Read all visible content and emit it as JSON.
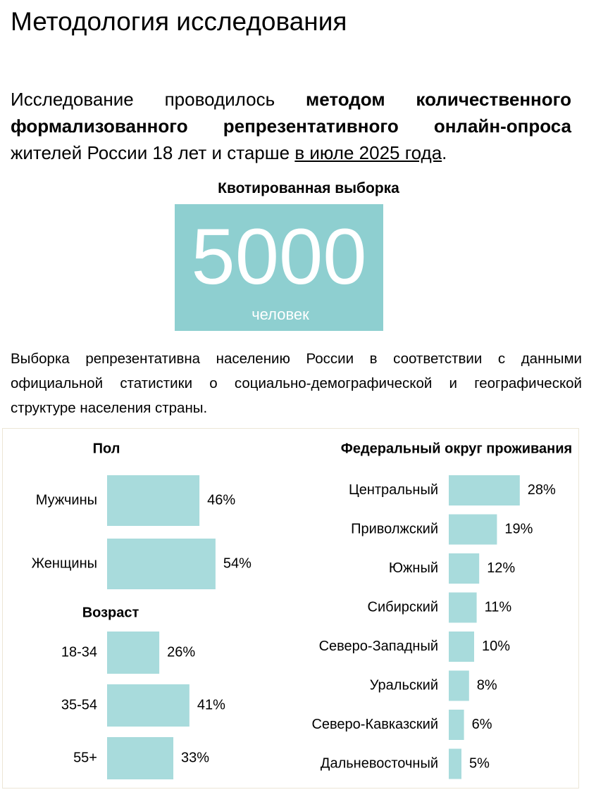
{
  "header": {
    "title": "Методология исследования"
  },
  "intro": [
    "Исследование проводилось ",
    "методом количественного формализованного репрезентативного онлайн-опроса",
    " жителей России 18 лет и старше ",
    "в июле 2025 года",
    "."
  ],
  "sample": {
    "title": "Квотированная выборка",
    "size": 5000,
    "unit": "человек"
  },
  "description": "Выборка репрезентативна населению России в соответствии с данными официальной статистики о социально-демографической и географической структуре населения страны.",
  "chart_data": [
    {
      "type": "bar",
      "orientation": "horizontal",
      "title": "Пол",
      "categories": [
        "Мужчины",
        "Женщины"
      ],
      "values": [
        46,
        54
      ],
      "value_labels": [
        "46%",
        "54%"
      ],
      "color": "#a8dbdc"
    },
    {
      "type": "bar",
      "orientation": "horizontal",
      "title": "Возраст",
      "categories": [
        "18-34",
        "35-54",
        "55+"
      ],
      "values": [
        26,
        41,
        33
      ],
      "value_labels": [
        "26%",
        "41%",
        "33%"
      ],
      "color": "#a8dbdc"
    },
    {
      "type": "bar",
      "orientation": "horizontal",
      "title": "Федеральный округ проживания",
      "categories": [
        "Центральный",
        "Приволжский",
        "Южный",
        "Сибирский",
        "Северо-Западный",
        "Уральский",
        "Северо-Кавказский",
        "Дальневосточный"
      ],
      "values": [
        28,
        19,
        12,
        11,
        10,
        8,
        6,
        5
      ],
      "value_labels": [
        "28%",
        "19%",
        "12%",
        "11%",
        "10%",
        "8%",
        "6%",
        "5%"
      ],
      "color": "#a8dbdc"
    }
  ]
}
